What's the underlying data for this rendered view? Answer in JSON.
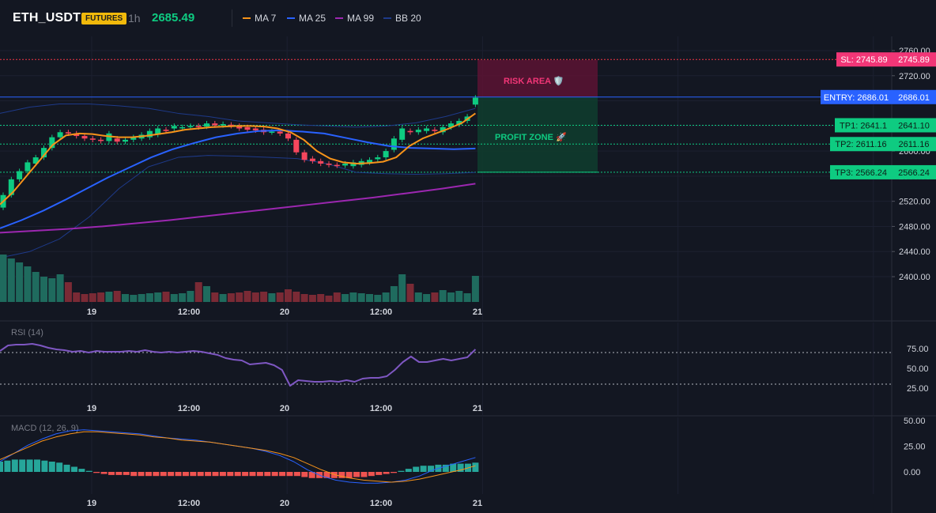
{
  "header": {
    "symbol": "ETH_USDT",
    "market_badge": "FUTURES",
    "timeframe": "1h",
    "last_price": "2685.49",
    "legend": [
      {
        "label": "MA 7",
        "color": "#f7931a"
      },
      {
        "label": "MA 25",
        "color": "#2962ff"
      },
      {
        "label": "MA 99",
        "color": "#9c27b0"
      },
      {
        "label": "BB 20",
        "color": "#1e3a8a"
      }
    ]
  },
  "zones": {
    "risk_label": "RISK AREA 🛡️",
    "profit_label": "PROFIT ZONE 🚀"
  },
  "levels": {
    "sl": {
      "label": "SL: 2745.89",
      "axis": "2745.89",
      "price": 2745.89,
      "color": "#f23645"
    },
    "entry": {
      "label": "ENTRY: 2686.01",
      "axis": "2686.01",
      "price": 2686.01,
      "color": "#2962ff"
    },
    "tp1": {
      "label": "TP1: 2641.1",
      "axis": "2641.10",
      "price": 2641.1,
      "color": "#0ecb81"
    },
    "tp2": {
      "label": "TP2: 2611.16",
      "axis": "2611.16",
      "price": 2611.16,
      "color": "#0ecb81"
    },
    "tp3": {
      "label": "TP3: 2566.24",
      "axis": "2566.24",
      "price": 2566.24,
      "color": "#0ecb81"
    }
  },
  "price_axis": {
    "ticks": [
      "2760.00",
      "2720.00",
      "2680.00",
      "2640.00",
      "2600.00",
      "2560.00",
      "2520.00",
      "2480.00",
      "2440.00",
      "2400.00"
    ],
    "values": [
      2760,
      2720,
      2680,
      2640,
      2600,
      2560,
      2520,
      2480,
      2440,
      2400
    ]
  },
  "time_axis": {
    "labels": [
      "19",
      "12:00",
      "20",
      "12:00",
      "21"
    ],
    "positions": [
      8,
      20,
      32,
      44,
      56
    ]
  },
  "rsi": {
    "title": "RSI (14)",
    "ticks": [
      "75.00",
      "50.00",
      "25.00"
    ],
    "tick_values": [
      75,
      50,
      25
    ],
    "levels": [
      70,
      30
    ]
  },
  "macd": {
    "title": "MACD (12, 26, 9)",
    "ticks": [
      "50.00",
      "25.00",
      "0.00"
    ],
    "tick_values": [
      50,
      25,
      0
    ]
  },
  "chart_data": {
    "type": "candlestick",
    "candles": {
      "open": [
        2510,
        2530,
        2555,
        2568,
        2580,
        2590,
        2605,
        2622,
        2630,
        2628,
        2624,
        2620,
        2618,
        2616,
        2620,
        2615,
        2618,
        2620,
        2622,
        2626,
        2634,
        2636,
        2637,
        2638,
        2640,
        2639,
        2644,
        2641,
        2642,
        2640,
        2638,
        2636,
        2634,
        2630,
        2631,
        2628,
        2618,
        2598,
        2588,
        2584,
        2580,
        2578,
        2577,
        2576,
        2578,
        2582,
        2587,
        2590,
        2602,
        2618,
        2632,
        2630,
        2632,
        2634,
        2630,
        2638,
        2642,
        2648,
        2674
      ],
      "close": [
        2530,
        2555,
        2568,
        2582,
        2590,
        2605,
        2622,
        2630,
        2628,
        2624,
        2620,
        2618,
        2616,
        2628,
        2615,
        2618,
        2622,
        2626,
        2632,
        2636,
        2632,
        2640,
        2638,
        2640,
        2638,
        2644,
        2641,
        2643,
        2640,
        2636,
        2634,
        2633,
        2630,
        2631,
        2628,
        2620,
        2598,
        2586,
        2584,
        2580,
        2578,
        2577,
        2580,
        2582,
        2584,
        2586,
        2590,
        2600,
        2620,
        2636,
        2630,
        2634,
        2636,
        2632,
        2638,
        2644,
        2648,
        2655,
        2685
      ]
    },
    "volume": [
      60,
      55,
      50,
      45,
      38,
      32,
      30,
      35,
      25,
      12,
      10,
      11,
      12,
      13,
      14,
      10,
      9,
      10,
      11,
      12,
      13,
      10,
      11,
      14,
      25,
      20,
      12,
      10,
      11,
      12,
      14,
      12,
      13,
      11,
      12,
      16,
      13,
      10,
      9,
      10,
      8,
      12,
      10,
      12,
      11,
      10,
      9,
      12,
      20,
      35,
      23,
      12,
      10,
      12,
      15,
      12,
      14,
      11,
      33
    ],
    "ma7": [
      2515,
      2535,
      2560,
      2585,
      2610,
      2625,
      2628,
      2627,
      2624,
      2622,
      2622,
      2624,
      2627,
      2630,
      2634,
      2636,
      2638,
      2639,
      2640,
      2640,
      2639,
      2636,
      2630,
      2618,
      2600,
      2588,
      2582,
      2580,
      2581,
      2583,
      2590,
      2608,
      2620,
      2628,
      2636,
      2645,
      2660
    ],
    "ma25": [
      2477,
      2490,
      2505,
      2522,
      2540,
      2558,
      2574,
      2590,
      2603,
      2613,
      2622,
      2628,
      2632,
      2633,
      2631,
      2628,
      2621,
      2614,
      2608,
      2605,
      2604,
      2603,
      2604
    ],
    "ma99": [
      2470,
      2473,
      2476,
      2480,
      2485,
      2490,
      2496,
      2502,
      2508,
      2514,
      2520,
      2526,
      2533,
      2540,
      2548
    ],
    "bb_upper": [
      2660,
      2670,
      2675,
      2675,
      2672,
      2668,
      2660,
      2655,
      2648,
      2645,
      2642,
      2640,
      2638,
      2640,
      2645,
      2655,
      2668
    ],
    "bb_lower": [
      2430,
      2440,
      2460,
      2495,
      2540,
      2575,
      2590,
      2593,
      2592,
      2590,
      2588,
      2580,
      2566,
      2564,
      2563,
      2564,
      2566
    ],
    "rsi": [
      72,
      79,
      80,
      80,
      81,
      79,
      76,
      74,
      73,
      71,
      72,
      70,
      72,
      71,
      71,
      71,
      72,
      71,
      73,
      71,
      70,
      71,
      70,
      71,
      72,
      71,
      69,
      67,
      63,
      61,
      60,
      55,
      56,
      57,
      54,
      48,
      28,
      35,
      34,
      33,
      33,
      34,
      33,
      35,
      33,
      37,
      38,
      38,
      40,
      48,
      58,
      65,
      58,
      58,
      60,
      62,
      60,
      62,
      64,
      74
    ],
    "macd_line": [
      10,
      18,
      26,
      32,
      37,
      40,
      41,
      40,
      39,
      38,
      37,
      35,
      33,
      32,
      31,
      29,
      27,
      25,
      23,
      20,
      16,
      10,
      2,
      -4,
      -8,
      -10,
      -11,
      -11,
      -10,
      -8,
      -4,
      2,
      6,
      10,
      14
    ],
    "signal_line": [
      12,
      18,
      24,
      30,
      34,
      37,
      39,
      39,
      38,
      37,
      36,
      34,
      33,
      31,
      30,
      29,
      27,
      25,
      23,
      21,
      18,
      14,
      8,
      2,
      -3,
      -6,
      -8,
      -9,
      -10,
      -9,
      -7,
      -4,
      -1,
      2,
      6
    ],
    "histogram": [
      10,
      11,
      12,
      12,
      12,
      12,
      11,
      10,
      9,
      7,
      5,
      3,
      1,
      -1,
      -2,
      -3,
      -3,
      -3,
      -4,
      -4,
      -4,
      -4,
      -4,
      -4,
      -4,
      -4,
      -4,
      -4,
      -4,
      -4,
      -4,
      -4,
      -4,
      -4,
      -4,
      -4,
      -4,
      -4,
      -4,
      -4,
      -4,
      -5,
      -6,
      -6,
      -6,
      -6,
      -6,
      -6,
      -5,
      -5,
      -4,
      -3,
      -2,
      -1,
      1,
      3,
      5,
      6,
      6,
      7,
      7,
      8,
      8,
      8,
      9
    ]
  }
}
